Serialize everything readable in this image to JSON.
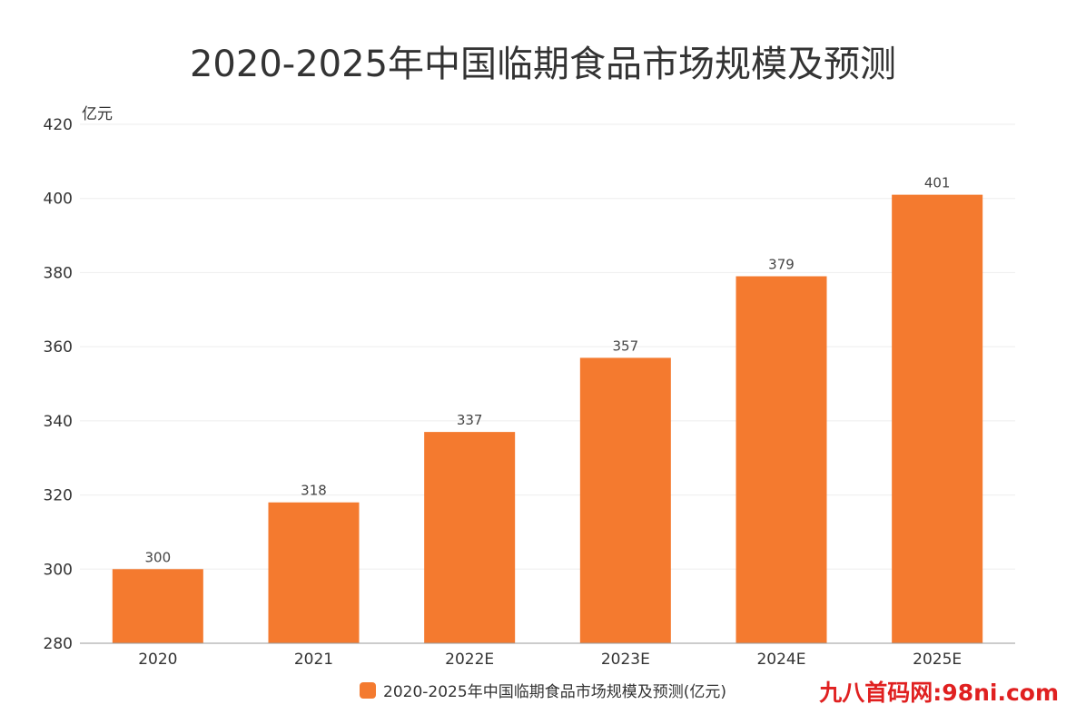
{
  "chart_data": {
    "type": "bar",
    "title": "2020-2025年中国临期食品市场规模及预测",
    "ylabel": "亿元",
    "xlabel": "",
    "categories": [
      "2020",
      "2021",
      "2022E",
      "2023E",
      "2024E",
      "2025E"
    ],
    "series": [
      {
        "name": "2020-2025年中国临期食品市场规模及预测(亿元)",
        "values": [
          300,
          318,
          337,
          357,
          379,
          401
        ],
        "data_labels": [
          "300",
          "318",
          "337",
          "357",
          "379",
          "401"
        ]
      }
    ],
    "ylim": [
      280,
      420
    ],
    "yticks": [
      280,
      300,
      320,
      340,
      360,
      380,
      400,
      420
    ],
    "ytick_labels": [
      "280",
      "300",
      "320",
      "340",
      "360",
      "380",
      "400",
      "420"
    ],
    "grid": true,
    "legend": "bottom-center"
  },
  "colors": {
    "bar": "#f47a2f",
    "grid": "#eeeeee",
    "axis": "#999999",
    "watermark": "#e02020"
  },
  "watermark": "九八首码网:98ni.com"
}
